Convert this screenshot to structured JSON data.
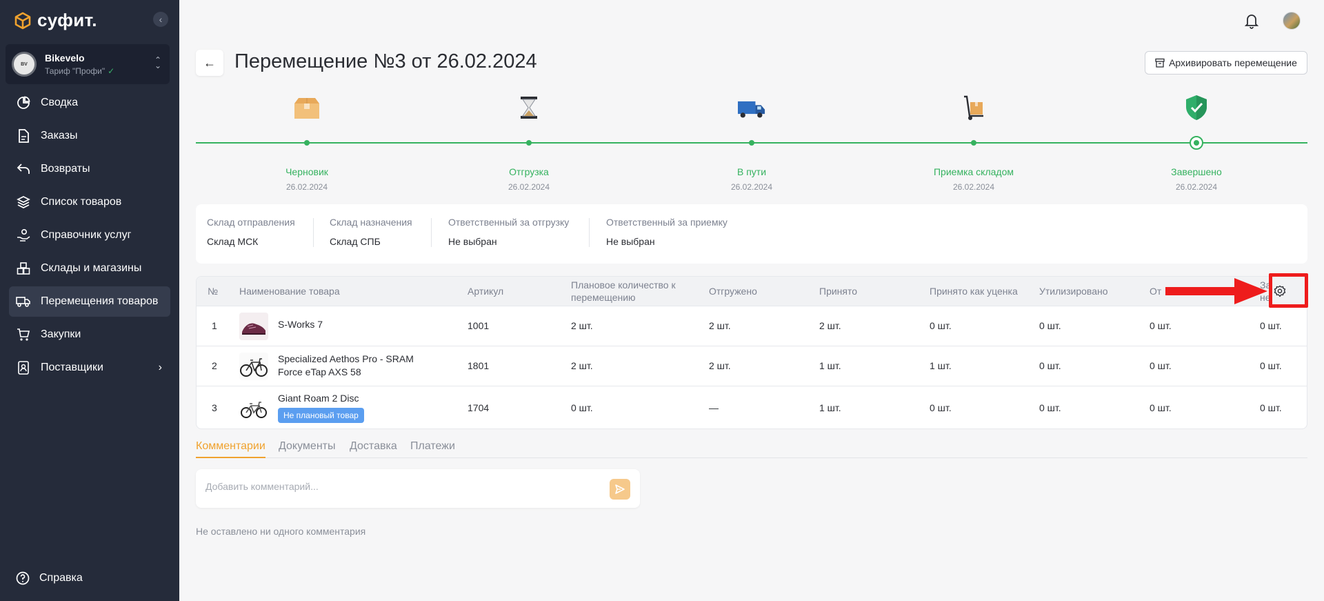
{
  "app": {
    "logo_text": "суфит."
  },
  "account": {
    "name": "Bikevelo",
    "tariff": "Тариф \"Профи\""
  },
  "sidebar": {
    "items": [
      {
        "label": "Сводка",
        "icon": "pie-chart-icon"
      },
      {
        "label": "Заказы",
        "icon": "document-icon"
      },
      {
        "label": "Возвраты",
        "icon": "return-arrow-icon"
      },
      {
        "label": "Список товаров",
        "icon": "layers-icon"
      },
      {
        "label": "Справочник услуг",
        "icon": "hand-service-icon"
      },
      {
        "label": "Склады и магазины",
        "icon": "boxes-icon"
      },
      {
        "label": "Перемещения товаров",
        "icon": "truck-icon",
        "active": true
      },
      {
        "label": "Закупки",
        "icon": "cart-icon"
      },
      {
        "label": "Поставщики",
        "icon": "contact-book-icon"
      }
    ],
    "help_label": "Справка"
  },
  "header": {
    "title": "Перемещение №3 от 26.02.2024",
    "archive_label": "Архивировать перемещение"
  },
  "timeline": [
    {
      "label": "Черновик",
      "date": "26.02.2024",
      "icon": "box-icon"
    },
    {
      "label": "Отгрузка",
      "date": "26.02.2024",
      "icon": "hourglass-icon"
    },
    {
      "label": "В пути",
      "date": "26.02.2024",
      "icon": "truck-icon"
    },
    {
      "label": "Приемка складом",
      "date": "26.02.2024",
      "icon": "hand-truck-icon"
    },
    {
      "label": "Завершено",
      "date": "26.02.2024",
      "icon": "shield-check-icon"
    }
  ],
  "info": {
    "source_label": "Склад отправления",
    "source_value": "Склад МСК",
    "dest_label": "Склад назначения",
    "dest_value": "Склад СПБ",
    "ship_resp_label": "Ответственный за отгрузку",
    "ship_resp_value": "Не выбран",
    "recv_resp_label": "Ответственный за приемку",
    "recv_resp_value": "Не выбран"
  },
  "table": {
    "headers": {
      "num": "№",
      "name": "Наименование товара",
      "sku": "Артикул",
      "planned": "Плановое количество к перемещению",
      "shipped": "Отгружено",
      "received": "Принято",
      "discounted": "Принято как уценка",
      "disposed": "Утилизировано",
      "col9": "От",
      "col10_line1": "За",
      "col10_line2": "не"
    },
    "rows": [
      {
        "num": "1",
        "name": "S-Works 7",
        "sku": "1001",
        "planned": "2 шт.",
        "shipped": "2 шт.",
        "received": "2 шт.",
        "discounted": "0 шт.",
        "disposed": "0 шт.",
        "col9": "0 шт.",
        "col10": "0 шт."
      },
      {
        "num": "2",
        "name": "Specialized Aethos Pro - SRAM Force eTap AXS 58",
        "sku": "1801",
        "planned": "2 шт.",
        "shipped": "2 шт.",
        "received": "1 шт.",
        "discounted": "1 шт.",
        "disposed": "0 шт.",
        "col9": "0 шт.",
        "col10": "0 шт."
      },
      {
        "num": "3",
        "name": "Giant Roam 2 Disc",
        "badge": "Не плановый товар",
        "sku": "1704",
        "planned": "0 шт.",
        "shipped": "—",
        "received": "1 шт.",
        "discounted": "0 шт.",
        "disposed": "0 шт.",
        "col9": "0 шт.",
        "col10": "0 шт."
      }
    ]
  },
  "tabs": [
    {
      "label": "Комментарии",
      "active": true
    },
    {
      "label": "Документы"
    },
    {
      "label": "Доставка"
    },
    {
      "label": "Платежи"
    }
  ],
  "comments": {
    "placeholder": "Добавить комментарий...",
    "empty_text": "Не оставлено ни одного комментария"
  },
  "colors": {
    "accent": "#f0a22e",
    "success": "#35b25f",
    "sidebar": "#252b3a",
    "annotation": "#ee1c1c",
    "badge": "#5b9ef0"
  }
}
